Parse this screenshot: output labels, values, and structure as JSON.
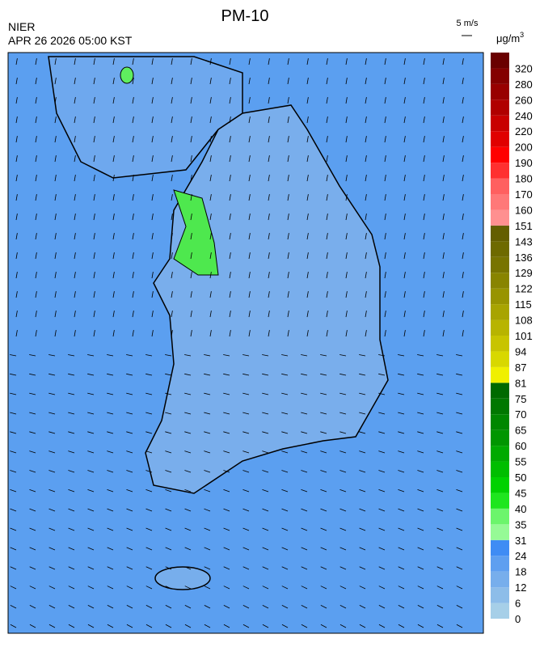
{
  "header": {
    "title": "PM-10",
    "agency": "NIER",
    "timestamp": "APR 26 2026 05:00 KST",
    "wind_scale": "5 m/s",
    "unit": "μg/m",
    "unit_exponent": "3"
  },
  "colorbar": {
    "ticks": [
      0,
      6,
      12,
      18,
      24,
      31,
      35,
      40,
      45,
      50,
      55,
      60,
      65,
      70,
      75,
      81,
      87,
      94,
      101,
      108,
      115,
      122,
      129,
      136,
      143,
      151,
      160,
      170,
      180,
      190,
      200,
      220,
      240,
      260,
      280,
      320
    ],
    "colors": [
      "#a6cfe8",
      "#8dbde9",
      "#77aeec",
      "#5e9ff0",
      "#3f8cf4",
      "#96fa96",
      "#6cf56c",
      "#1ee61e",
      "#00d200",
      "#00be00",
      "#00aa00",
      "#009600",
      "#008700",
      "#007800",
      "#006a00",
      "#f0f000",
      "#d8d800",
      "#c8c400",
      "#b8b400",
      "#a8a400",
      "#989400",
      "#888400",
      "#787400",
      "#6e6a00",
      "#645e00",
      "#ff9090",
      "#ff7878",
      "#ff6060",
      "#ff3030",
      "#ff0000",
      "#e00000",
      "#c80000",
      "#b00000",
      "#980000",
      "#840000",
      "#6a0000"
    ]
  }
}
